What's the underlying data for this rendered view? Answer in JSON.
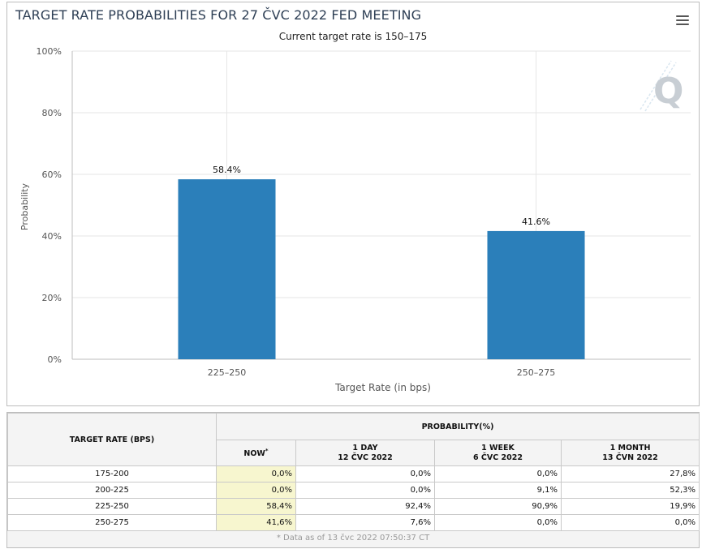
{
  "chart": {
    "title": "TARGET RATE PROBABILITIES FOR 27 ČVC 2022 FED MEETING",
    "subtitle": "Current target rate is 150–175",
    "watermark": "Q"
  },
  "chart_data": {
    "type": "bar",
    "categories": [
      "225–250",
      "250–275"
    ],
    "values": [
      58.4,
      41.6
    ],
    "data_labels": [
      "58.4%",
      "41.6%"
    ],
    "xlabel": "Target Rate (in bps)",
    "ylabel": "Probability",
    "ylim": [
      0,
      100
    ],
    "yticks": [
      "0%",
      "20%",
      "40%",
      "60%",
      "80%",
      "100%"
    ],
    "bar_color": "#2b7fba",
    "grid": true
  },
  "table": {
    "col_rate": "TARGET RATE (BPS)",
    "col_probability": "PROBABILITY(%)",
    "col_now": "NOW",
    "col_now_mark": "*",
    "col_1day": "1 DAY",
    "col_1day_date": "12 ČVC 2022",
    "col_1week": "1 WEEK",
    "col_1week_date": "6 ČVC 2022",
    "col_1month": "1 MONTH",
    "col_1month_date": "13 ČVN 2022",
    "rows": [
      {
        "rate": "175-200",
        "now": "0,0%",
        "day": "0,0%",
        "week": "0,0%",
        "month": "27,8%"
      },
      {
        "rate": "200-225",
        "now": "0,0%",
        "day": "0,0%",
        "week": "9,1%",
        "month": "52,3%"
      },
      {
        "rate": "225-250",
        "now": "58,4%",
        "day": "92,4%",
        "week": "90,9%",
        "month": "19,9%"
      },
      {
        "rate": "250-275",
        "now": "41,6%",
        "day": "7,6%",
        "week": "0,0%",
        "month": "0,0%"
      }
    ],
    "footnote": "* Data as of 13 čvc 2022 07:50:37 CT"
  }
}
